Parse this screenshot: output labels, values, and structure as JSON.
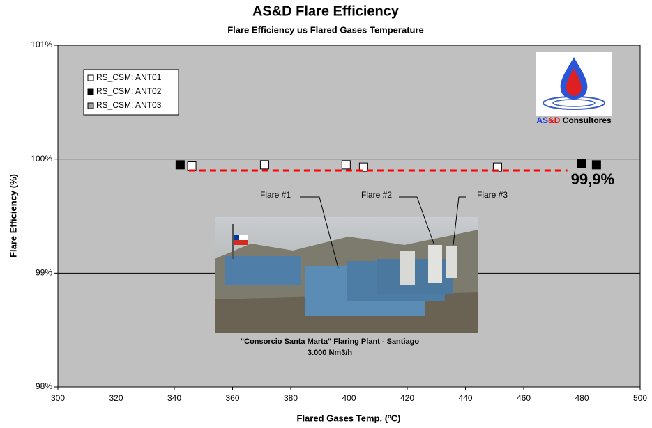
{
  "chart_data": {
    "type": "scatter",
    "title": "AS&D Flare Efficiency",
    "subtitle": "Flare Efficiency us Flared Gases Temperature",
    "x_label": "Flared Gases Temp. (ºC)",
    "y_label": "Flare Efficiency (%)",
    "xlim": [
      300,
      500
    ],
    "xticks": [
      300,
      320,
      340,
      360,
      380,
      400,
      420,
      440,
      460,
      480,
      500
    ],
    "ylim": [
      98,
      101
    ],
    "yticks": [
      {
        "value": 98,
        "label": "98%"
      },
      {
        "value": 99,
        "label": "99%"
      },
      {
        "value": 100,
        "label": "100%"
      },
      {
        "value": 101,
        "label": "101%"
      }
    ],
    "grid": true,
    "legend": "top-left",
    "series": [
      {
        "name": "RS_CSM: ANT01",
        "color": "#ffffff",
        "x": [
          346,
          371,
          399,
          405,
          451
        ],
        "values": [
          99.94,
          99.95,
          99.95,
          99.93,
          99.93
        ]
      },
      {
        "name": "RS_CSM: ANT02",
        "color": "#000000",
        "x": [
          342,
          480,
          485
        ],
        "values": [
          99.95,
          99.96,
          99.95
        ]
      },
      {
        "name": "RS_CSM: ANT03",
        "color": "#a0a0a0",
        "x": [],
        "values": []
      }
    ],
    "reference_line": {
      "value": 99.9,
      "label": "99,9%",
      "x": [
        345,
        475
      ],
      "color": "#ff0000"
    },
    "annotations": [
      "Flare #1",
      "Flare #2",
      "Flare #3"
    ],
    "photo_caption": [
      "\"Consorcio Santa Marta\" Flaring Plant - Santiago",
      "3.000 Nm3/h"
    ],
    "logo_text": [
      "AS",
      "&D",
      " Consultores"
    ]
  }
}
